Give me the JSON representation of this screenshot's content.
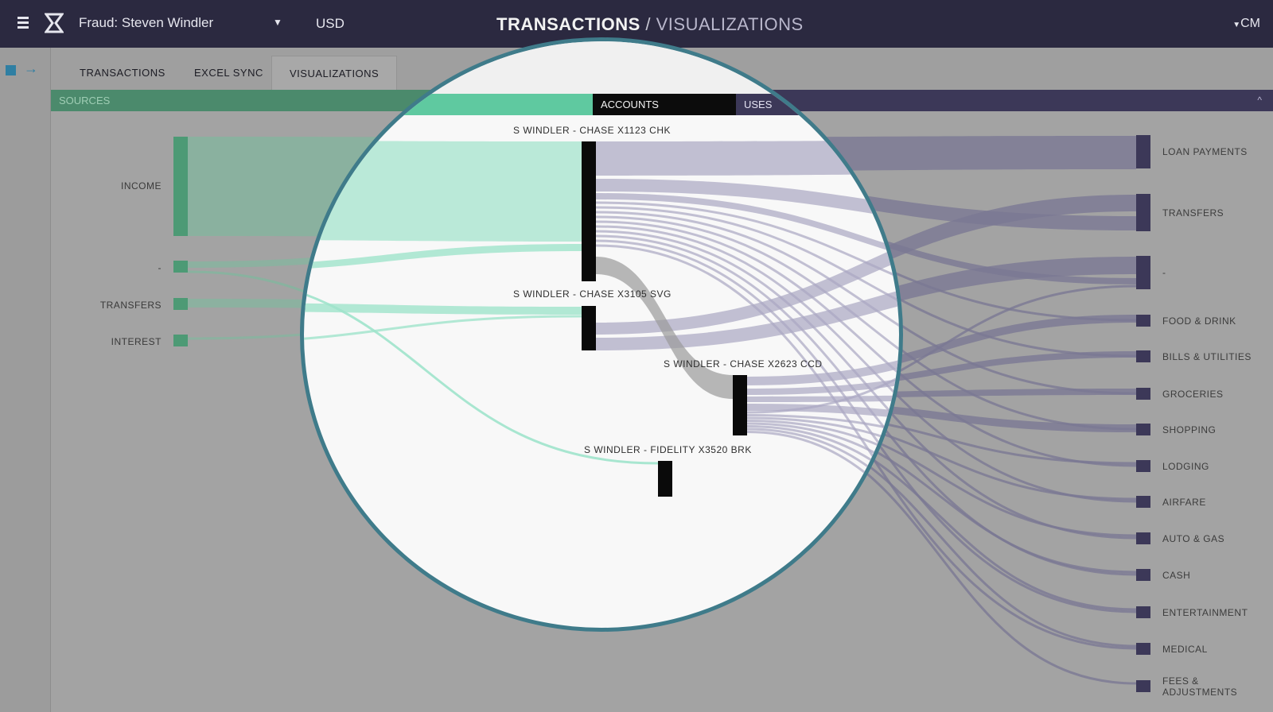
{
  "header": {
    "account_name": "Fraud: Steven Windler",
    "currency": "USD",
    "title_bold": "TRANSACTIONS",
    "title_separator": " / ",
    "title_light": "VISUALIZATIONS",
    "user": "CM"
  },
  "tabs": [
    "TRANSACTIONS",
    "EXCEL SYNC",
    "VISUALIZATIONS"
  ],
  "bands": {
    "sources": "SOURCES",
    "accounts": "ACCOUNTS",
    "uses": "USES",
    "collapse_glyph": "^"
  },
  "chart_data": {
    "type": "sankey",
    "sources": [
      "INCOME",
      "-",
      "TRANSFERS",
      "INTEREST"
    ],
    "accounts": [
      "S WINDLER - CHASE X1123 CHK",
      "S WINDLER - CHASE X3105 SVG",
      "S WINDLER - CHASE X2623 CCD",
      "S WINDLER - FIDELITY X3520 BRK"
    ],
    "uses": [
      "LOAN PAYMENTS",
      "TRANSFERS",
      "-",
      "FOOD & DRINK",
      "BILLS & UTILITIES",
      "GROCERIES",
      "SHOPPING",
      "LODGING",
      "AIRFARE",
      "AUTO & GAS",
      "CASH",
      "ENTERTAINMENT",
      "MEDICAL",
      "FEES & ADJUSTMENTS"
    ],
    "colors": {
      "sources": "#4d9a75",
      "accounts": "#0a0a0a",
      "uses": "#3c3858",
      "lens_border": "#3f7b8a"
    }
  }
}
